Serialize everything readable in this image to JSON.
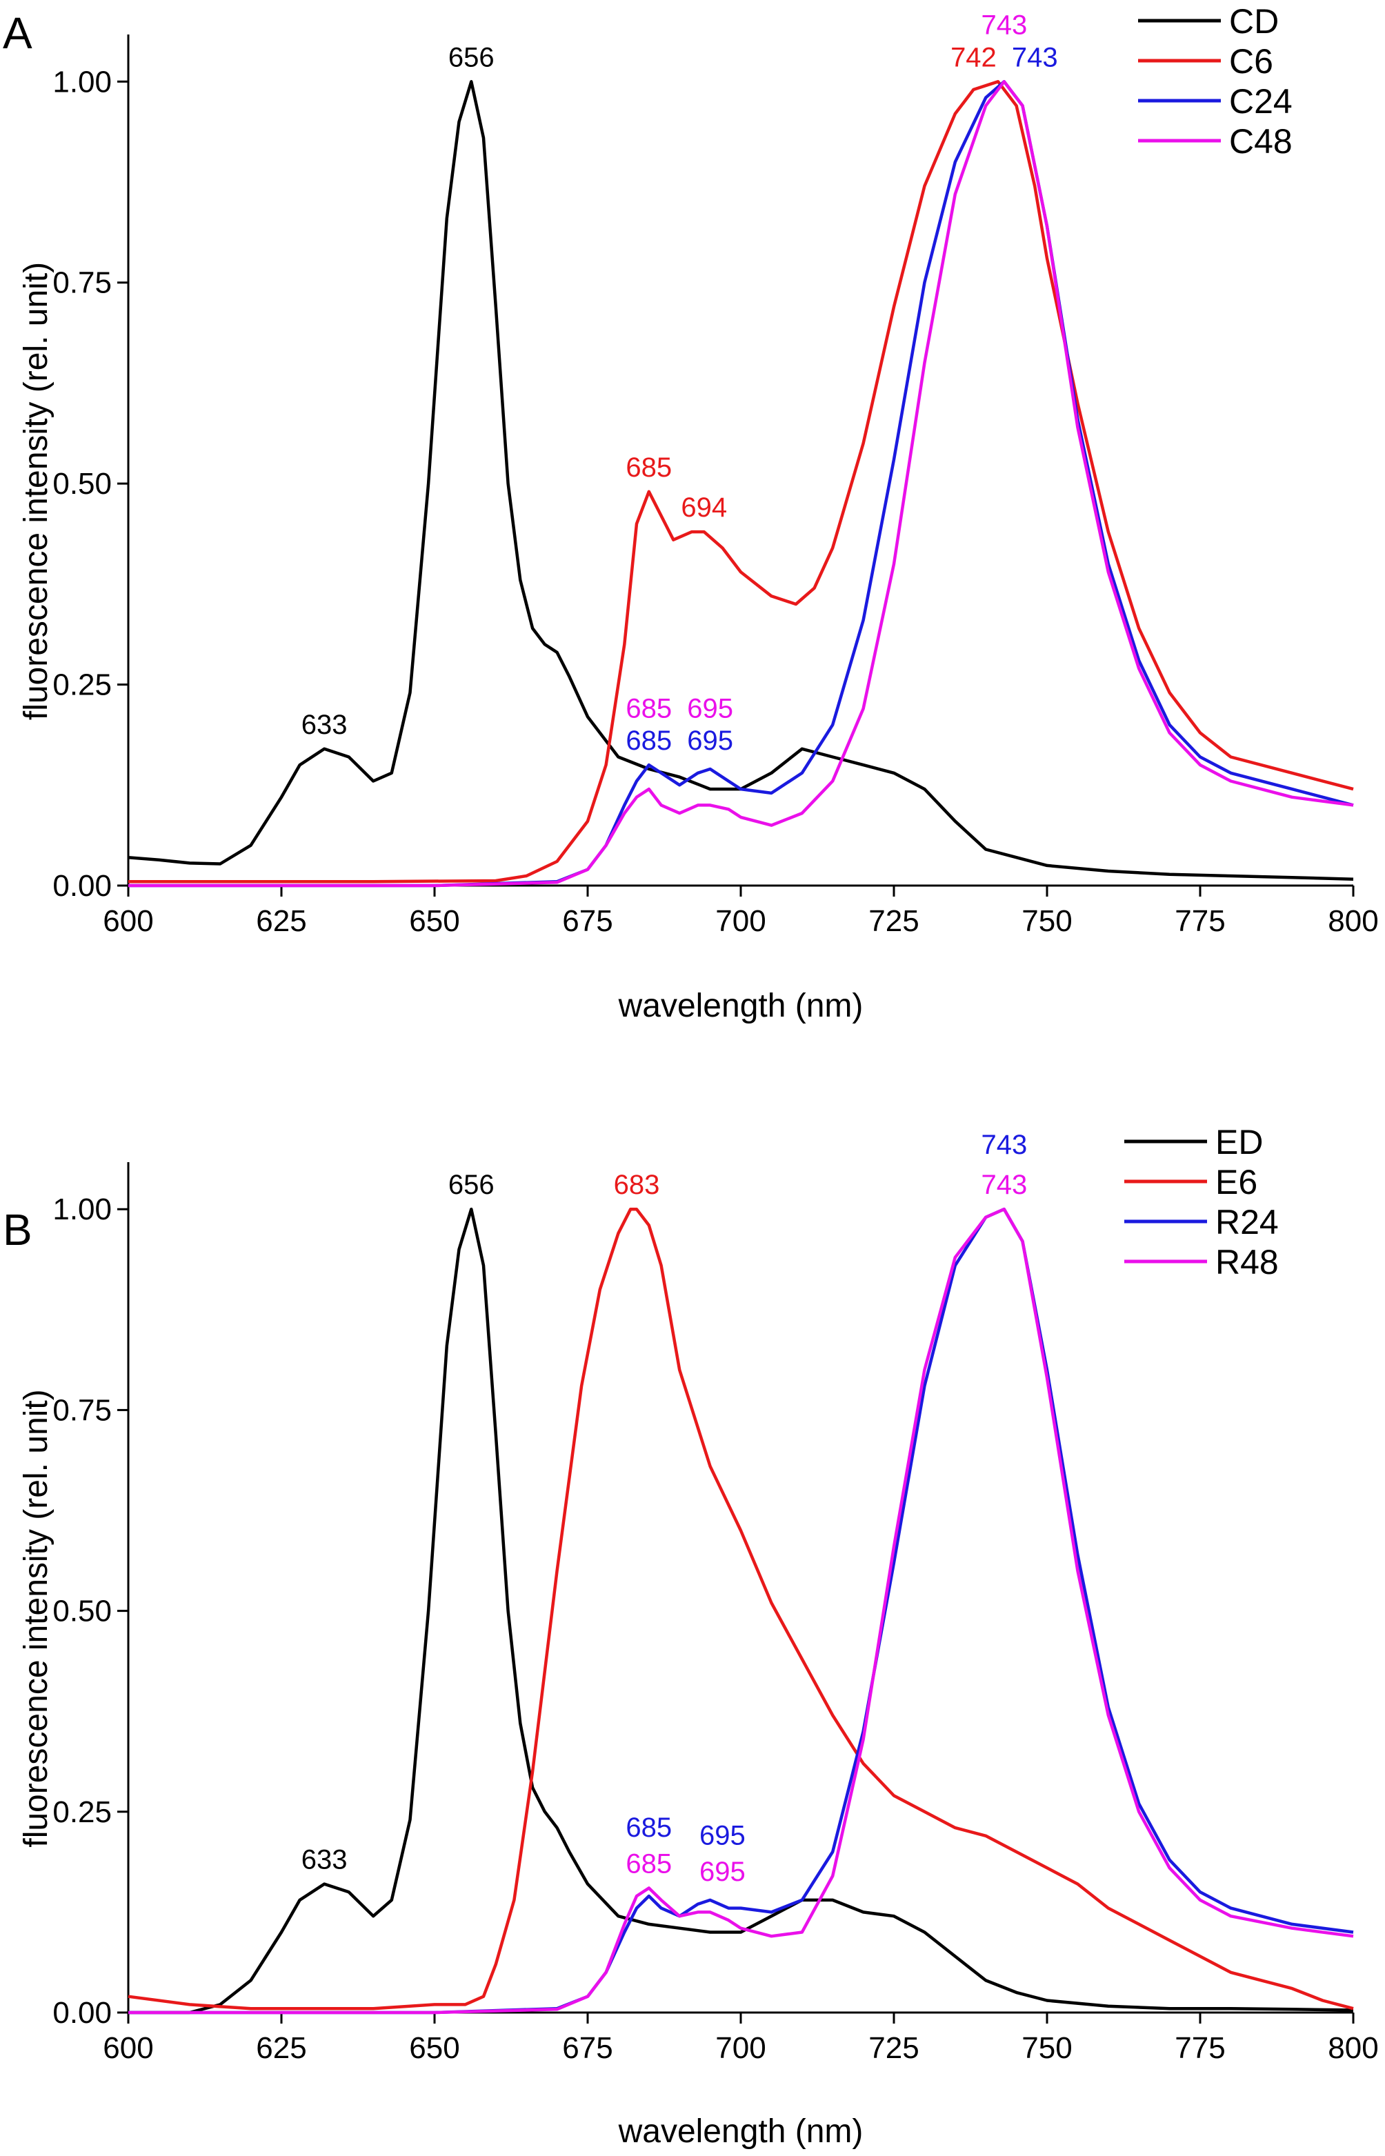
{
  "chart_data": [
    {
      "type": "line",
      "panel_label": "A",
      "xlabel": "wavelength (nm)",
      "ylabel": "fluorescence intensity (rel. unit)",
      "xlim": [
        600,
        800
      ],
      "ylim": [
        0,
        1.05
      ],
      "x_ticks": [
        600,
        625,
        650,
        675,
        700,
        725,
        750,
        775,
        800
      ],
      "y_ticks": [
        0.0,
        0.25,
        0.5,
        0.75,
        1.0
      ],
      "y_tick_labels": [
        "0.00",
        "0.25",
        "0.50",
        "0.75",
        "1.00"
      ],
      "legend_position": "top-right",
      "series": [
        {
          "name": "CD",
          "color": "#000000",
          "x": [
            600,
            605,
            610,
            615,
            620,
            625,
            628,
            632,
            636,
            640,
            643,
            646,
            649,
            652,
            654,
            656,
            658,
            660,
            662,
            664,
            666,
            668,
            670,
            672,
            675,
            680,
            685,
            690,
            695,
            700,
            705,
            710,
            715,
            720,
            725,
            730,
            735,
            740,
            745,
            750,
            760,
            770,
            780,
            790,
            800
          ],
          "y": [
            0.035,
            0.032,
            0.028,
            0.027,
            0.05,
            0.11,
            0.15,
            0.17,
            0.16,
            0.13,
            0.14,
            0.24,
            0.5,
            0.83,
            0.95,
            1.0,
            0.93,
            0.72,
            0.5,
            0.38,
            0.32,
            0.3,
            0.29,
            0.26,
            0.21,
            0.16,
            0.145,
            0.135,
            0.12,
            0.12,
            0.14,
            0.17,
            0.16,
            0.15,
            0.14,
            0.12,
            0.08,
            0.045,
            0.035,
            0.025,
            0.018,
            0.014,
            0.012,
            0.01,
            0.008
          ]
        },
        {
          "name": "C6",
          "color": "#e8191a",
          "x": [
            600,
            620,
            640,
            660,
            665,
            670,
            675,
            678,
            681,
            683,
            685,
            687,
            689,
            692,
            694,
            697,
            700,
            705,
            709,
            712,
            715,
            720,
            725,
            730,
            735,
            738,
            742,
            745,
            748,
            750,
            755,
            760,
            765,
            770,
            775,
            780,
            790,
            800
          ],
          "y": [
            0.005,
            0.005,
            0.005,
            0.006,
            0.012,
            0.03,
            0.08,
            0.15,
            0.3,
            0.45,
            0.49,
            0.46,
            0.43,
            0.44,
            0.44,
            0.42,
            0.39,
            0.36,
            0.35,
            0.37,
            0.42,
            0.55,
            0.72,
            0.87,
            0.96,
            0.99,
            1.0,
            0.97,
            0.87,
            0.78,
            0.6,
            0.44,
            0.32,
            0.24,
            0.19,
            0.16,
            0.14,
            0.12
          ]
        },
        {
          "name": "C24",
          "color": "#1a1adf",
          "x": [
            600,
            650,
            670,
            675,
            678,
            681,
            683,
            685,
            687,
            690,
            693,
            695,
            698,
            700,
            705,
            710,
            715,
            720,
            725,
            730,
            735,
            740,
            743,
            746,
            750,
            755,
            760,
            765,
            770,
            775,
            780,
            790,
            800
          ],
          "y": [
            0.0,
            0.0,
            0.005,
            0.02,
            0.05,
            0.1,
            0.13,
            0.15,
            0.14,
            0.125,
            0.14,
            0.145,
            0.13,
            0.12,
            0.115,
            0.14,
            0.2,
            0.33,
            0.53,
            0.75,
            0.9,
            0.98,
            1.0,
            0.97,
            0.82,
            0.58,
            0.4,
            0.28,
            0.2,
            0.16,
            0.14,
            0.12,
            0.1
          ]
        },
        {
          "name": "C48",
          "color": "#ea10ea",
          "x": [
            600,
            650,
            670,
            675,
            678,
            681,
            683,
            685,
            687,
            690,
            693,
            695,
            698,
            700,
            705,
            710,
            715,
            720,
            725,
            730,
            735,
            740,
            743,
            746,
            750,
            755,
            760,
            765,
            770,
            775,
            780,
            790,
            800
          ],
          "y": [
            0.0,
            0.0,
            0.004,
            0.02,
            0.05,
            0.09,
            0.11,
            0.12,
            0.1,
            0.09,
            0.1,
            0.1,
            0.095,
            0.085,
            0.075,
            0.09,
            0.13,
            0.22,
            0.4,
            0.65,
            0.86,
            0.97,
            1.0,
            0.97,
            0.82,
            0.57,
            0.39,
            0.27,
            0.19,
            0.15,
            0.13,
            0.11,
            0.1
          ]
        }
      ],
      "annotations": [
        {
          "text": "633",
          "x": 632,
          "y": 0.17,
          "color": "#000000"
        },
        {
          "text": "656",
          "x": 656,
          "y": 1.0,
          "color": "#000000"
        },
        {
          "text": "685",
          "x": 685,
          "y": 0.49,
          "color": "#e8191a"
        },
        {
          "text": "694",
          "x": 694,
          "y": 0.44,
          "color": "#e8191a"
        },
        {
          "text": "685",
          "x": 685,
          "y": 0.19,
          "color": "#ea10ea"
        },
        {
          "text": "695",
          "x": 695,
          "y": 0.19,
          "color": "#ea10ea"
        },
        {
          "text": "685",
          "x": 685,
          "y": 0.15,
          "color": "#1a1adf"
        },
        {
          "text": "695",
          "x": 695,
          "y": 0.15,
          "color": "#1a1adf"
        },
        {
          "text": "742",
          "x": 738,
          "y": 1.0,
          "color": "#e8191a"
        },
        {
          "text": "743",
          "x": 748,
          "y": 1.0,
          "color": "#1a1adf"
        },
        {
          "text": "743",
          "x": 743,
          "y": 1.04,
          "color": "#ea10ea"
        }
      ]
    },
    {
      "type": "line",
      "panel_label": "B",
      "xlabel": "wavelength (nm)",
      "ylabel": "fluorescence intensity (rel. unit)",
      "xlim": [
        600,
        800
      ],
      "ylim": [
        0,
        1.05
      ],
      "x_ticks": [
        600,
        625,
        650,
        675,
        700,
        725,
        750,
        775,
        800
      ],
      "y_ticks": [
        0.0,
        0.25,
        0.5,
        0.75,
        1.0
      ],
      "y_tick_labels": [
        "0.00",
        "0.25",
        "0.50",
        "0.75",
        "1.00"
      ],
      "legend_position": "top-right",
      "series": [
        {
          "name": "ED",
          "color": "#000000",
          "x": [
            600,
            605,
            610,
            615,
            620,
            625,
            628,
            632,
            636,
            640,
            643,
            646,
            649,
            652,
            654,
            656,
            658,
            660,
            662,
            664,
            666,
            668,
            670,
            672,
            675,
            680,
            685,
            690,
            695,
            700,
            705,
            710,
            715,
            720,
            725,
            730,
            735,
            740,
            745,
            750,
            760,
            770,
            780,
            790,
            800
          ],
          "y": [
            0.0,
            0.0,
            0.0,
            0.01,
            0.04,
            0.1,
            0.14,
            0.16,
            0.15,
            0.12,
            0.14,
            0.24,
            0.5,
            0.83,
            0.95,
            1.0,
            0.93,
            0.72,
            0.5,
            0.36,
            0.28,
            0.25,
            0.23,
            0.2,
            0.16,
            0.12,
            0.11,
            0.105,
            0.1,
            0.1,
            0.12,
            0.14,
            0.14,
            0.125,
            0.12,
            0.1,
            0.07,
            0.04,
            0.025,
            0.015,
            0.008,
            0.005,
            0.005,
            0.004,
            0.003
          ]
        },
        {
          "name": "E6",
          "color": "#e8191a",
          "x": [
            600,
            610,
            620,
            630,
            640,
            650,
            655,
            658,
            660,
            663,
            666,
            670,
            674,
            677,
            680,
            682,
            683,
            685,
            687,
            690,
            695,
            700,
            705,
            710,
            715,
            720,
            725,
            730,
            735,
            740,
            745,
            750,
            755,
            760,
            765,
            770,
            775,
            780,
            785,
            790,
            795,
            800
          ],
          "y": [
            0.02,
            0.01,
            0.005,
            0.005,
            0.005,
            0.01,
            0.01,
            0.02,
            0.06,
            0.14,
            0.3,
            0.55,
            0.78,
            0.9,
            0.97,
            1.0,
            1.0,
            0.98,
            0.93,
            0.8,
            0.68,
            0.6,
            0.51,
            0.44,
            0.37,
            0.31,
            0.27,
            0.25,
            0.23,
            0.22,
            0.2,
            0.18,
            0.16,
            0.13,
            0.11,
            0.09,
            0.07,
            0.05,
            0.04,
            0.03,
            0.015,
            0.005
          ]
        },
        {
          "name": "R24",
          "color": "#1a1adf",
          "x": [
            600,
            650,
            670,
            675,
            678,
            681,
            683,
            685,
            687,
            690,
            693,
            695,
            698,
            700,
            705,
            710,
            715,
            720,
            725,
            730,
            735,
            740,
            743,
            746,
            750,
            755,
            760,
            765,
            770,
            775,
            780,
            790,
            800
          ],
          "y": [
            0.0,
            0.0,
            0.005,
            0.02,
            0.05,
            0.1,
            0.13,
            0.145,
            0.13,
            0.12,
            0.135,
            0.14,
            0.13,
            0.13,
            0.125,
            0.14,
            0.2,
            0.35,
            0.56,
            0.78,
            0.93,
            0.99,
            1.0,
            0.96,
            0.8,
            0.57,
            0.38,
            0.26,
            0.19,
            0.15,
            0.13,
            0.11,
            0.1
          ]
        },
        {
          "name": "R48",
          "color": "#ea10ea",
          "x": [
            600,
            650,
            670,
            675,
            678,
            681,
            683,
            685,
            687,
            690,
            693,
            695,
            698,
            700,
            705,
            710,
            715,
            720,
            725,
            730,
            735,
            740,
            743,
            746,
            750,
            755,
            760,
            765,
            770,
            775,
            780,
            790,
            800
          ],
          "y": [
            0.0,
            0.0,
            0.004,
            0.02,
            0.05,
            0.11,
            0.145,
            0.155,
            0.14,
            0.12,
            0.125,
            0.125,
            0.115,
            0.105,
            0.095,
            0.1,
            0.17,
            0.34,
            0.58,
            0.8,
            0.94,
            0.99,
            1.0,
            0.96,
            0.79,
            0.55,
            0.37,
            0.25,
            0.18,
            0.14,
            0.12,
            0.105,
            0.095
          ]
        }
      ],
      "annotations": [
        {
          "text": "633",
          "x": 632,
          "y": 0.16,
          "color": "#000000"
        },
        {
          "text": "656",
          "x": 656,
          "y": 1.0,
          "color": "#000000"
        },
        {
          "text": "683",
          "x": 683,
          "y": 1.0,
          "color": "#e8191a"
        },
        {
          "text": "685",
          "x": 685,
          "y": 0.2,
          "color": "#1a1adf"
        },
        {
          "text": "695",
          "x": 697,
          "y": 0.19,
          "color": "#1a1adf"
        },
        {
          "text": "685",
          "x": 685,
          "y": 0.155,
          "color": "#ea10ea"
        },
        {
          "text": "695",
          "x": 697,
          "y": 0.145,
          "color": "#ea10ea"
        },
        {
          "text": "743",
          "x": 743,
          "y": 1.05,
          "color": "#1a1adf"
        },
        {
          "text": "743",
          "x": 743,
          "y": 1.0,
          "color": "#ea10ea"
        }
      ]
    }
  ]
}
